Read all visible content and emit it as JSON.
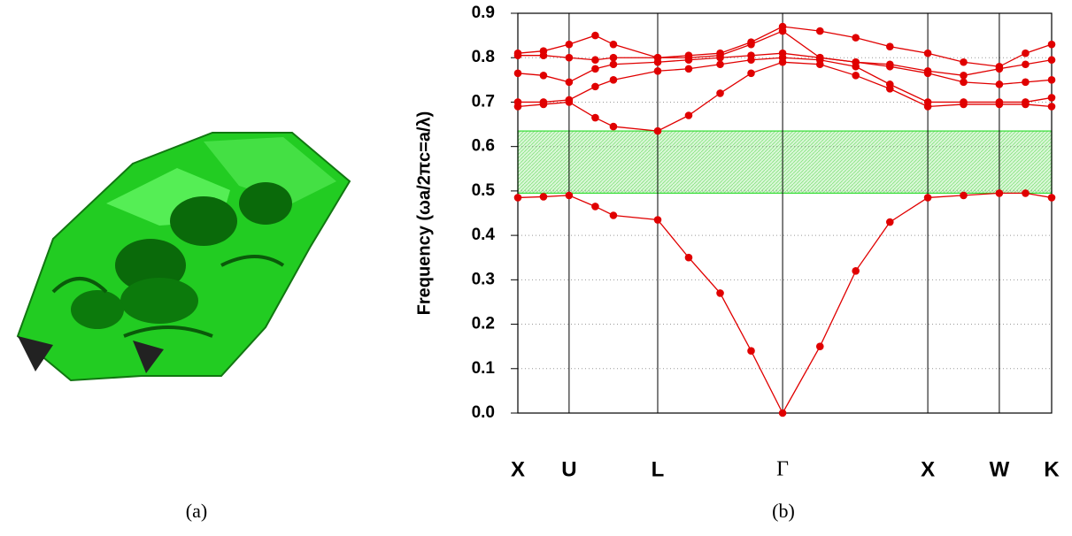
{
  "chart_data": {
    "type": "line",
    "y_label": "Frequency (ωa/2πc=a/λ)",
    "panel_labels": [
      "(a)",
      "(b)"
    ],
    "xlim": [
      0,
      1
    ],
    "xticks": [
      {
        "value": 0,
        "label": "X"
      },
      {
        "value": 0.096,
        "label": "U"
      },
      {
        "value": 0.262,
        "label": "L"
      },
      {
        "value": 0.496,
        "label": "Γ"
      },
      {
        "value": 0.768,
        "label": "X"
      },
      {
        "value": 0.902,
        "label": "W"
      },
      {
        "value": 1,
        "label": "K"
      }
    ],
    "ylim": [
      0,
      0.9
    ],
    "yticks": [
      {
        "value": 0,
        "label": "0.0"
      },
      0.1,
      0.2,
      0.3,
      0.4,
      0.5,
      0.6,
      0.7,
      0.8,
      0.9
    ],
    "grid": true,
    "band_gap": [
      0.495,
      0.635
    ],
    "band_gap_color": "#33dd33",
    "x": [
      0,
      0.048,
      0.096,
      0.145,
      0.179,
      0.262,
      0.32,
      0.379,
      0.437,
      0.496,
      0.566,
      0.633,
      0.697,
      0.768,
      0.835,
      0.902,
      0.951,
      1
    ],
    "series": [
      {
        "color": "#e00000",
        "values": [
          0.485,
          0.487,
          0.49,
          0.465,
          0.445,
          0.435,
          0.35,
          0.27,
          0.14,
          0,
          0.15,
          0.32,
          0.43,
          0.485,
          0.49,
          0.495,
          0.495,
          0.485
        ]
      },
      {
        "color": "#e00000",
        "values": [
          0.69,
          0.695,
          0.7,
          0.665,
          0.645,
          0.635,
          0.67,
          0.72,
          0.765,
          0.79,
          0.785,
          0.76,
          0.73,
          0.69,
          0.695,
          0.695,
          0.695,
          0.69
        ]
      },
      {
        "color": "#e00000",
        "values": [
          0.7,
          0.7,
          0.705,
          0.735,
          0.75,
          0.77,
          0.775,
          0.785,
          0.795,
          0.8,
          0.795,
          0.78,
          0.74,
          0.7,
          0.7,
          0.7,
          0.7,
          0.71
        ]
      },
      {
        "color": "#e00000",
        "values": [
          0.765,
          0.76,
          0.745,
          0.775,
          0.785,
          0.79,
          0.795,
          0.8,
          0.805,
          0.81,
          0.8,
          0.79,
          0.78,
          0.765,
          0.745,
          0.74,
          0.745,
          0.75
        ]
      },
      {
        "color": "#e00000",
        "values": [
          0.805,
          0.805,
          0.8,
          0.795,
          0.8,
          0.8,
          0.8,
          0.805,
          0.83,
          0.86,
          0.8,
          0.79,
          0.785,
          0.77,
          0.76,
          0.775,
          0.785,
          0.795
        ]
      },
      {
        "color": "#e00000",
        "values": [
          0.81,
          0.815,
          0.83,
          0.85,
          0.83,
          0.8,
          0.805,
          0.81,
          0.835,
          0.87,
          0.86,
          0.845,
          0.825,
          0.81,
          0.79,
          0.78,
          0.81,
          0.83
        ]
      }
    ]
  }
}
